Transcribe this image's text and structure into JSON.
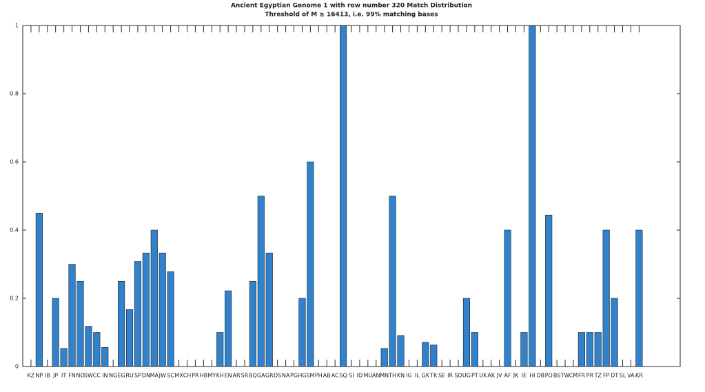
{
  "chart_data": {
    "type": "bar",
    "title": "Ancient Egyptian Genome 1 with row number 320 Match Distribution",
    "subtitle": "Threshold of M ≥ 16413, i.e. 99% matching bases",
    "categories": [
      "KZ",
      "NP",
      "IB",
      "JP",
      "IT",
      "FN",
      "NO",
      "SW",
      "CC",
      "IN",
      "NG",
      "EG",
      "RU",
      "SP",
      "DN",
      "MA",
      "JW",
      "SC",
      "MX",
      "CH",
      "PR",
      "HB",
      "MY",
      "KH",
      "EN",
      "AR",
      "SR",
      "BQ",
      "GA",
      "GR",
      "DS",
      "NA",
      "PG",
      "HG",
      "SM",
      "PH",
      "AB",
      "AC",
      "SQ",
      "SI",
      "ID",
      "MU",
      "AN",
      "MN",
      "TH",
      "KN",
      "IG",
      "IL",
      "GK",
      "TK",
      "SE",
      "IR",
      "SD",
      "UG",
      "PT",
      "UK",
      "AK",
      "JV",
      "AF",
      "JK",
      "IE",
      "HI",
      "DB",
      "PO",
      "BS",
      "TW",
      "CM",
      "FR",
      "PR",
      "TZ",
      "FP",
      "DT",
      "SL",
      "VA",
      "KR"
    ],
    "values": [
      0,
      0.45,
      0,
      0.2,
      0.053,
      0.3,
      0.25,
      0.118,
      0.1,
      0.056,
      0,
      0.25,
      0.167,
      0.308,
      0.333,
      0.4,
      0.333,
      0.278,
      0,
      0,
      0,
      0,
      0,
      0.1,
      0.222,
      0,
      0,
      0.25,
      0.5,
      0.333,
      0,
      0,
      0,
      0.2,
      0.6,
      0,
      0,
      0,
      1,
      0,
      0,
      0,
      0,
      0.053,
      0.5,
      0.091,
      0,
      0,
      0.071,
      0.063,
      0,
      0,
      0,
      0.2,
      0.1,
      0,
      0,
      0,
      0.4,
      0,
      0.1,
      1,
      0,
      0.444,
      0,
      0,
      0,
      0.1,
      0.1,
      0.1,
      0.4,
      0.2,
      0,
      0,
      0.4
    ],
    "color": "#3281cd",
    "xlim": [
      0,
      80
    ],
    "ylim": [
      0,
      1
    ],
    "yticks": [
      0,
      {
        "value": 0.2,
        "label": "0.2"
      },
      {
        "value": 0.4,
        "label": "0.4"
      },
      {
        "value": 0.6,
        "label": "0.6"
      },
      {
        "value": 0.8,
        "label": "0.8"
      },
      1
    ]
  }
}
